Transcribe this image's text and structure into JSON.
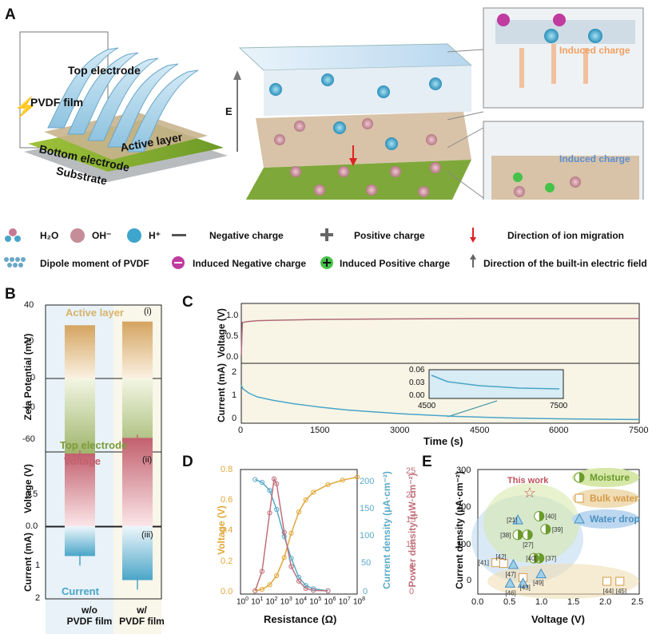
{
  "panels": {
    "a": "A",
    "b": "B",
    "c": "C",
    "d": "D",
    "e": "E"
  },
  "panelA": {
    "device_labels": [
      "Top electrode",
      "PVDF film",
      "Active layer",
      "Bottom electrode",
      "Substrate"
    ],
    "field_label": "E",
    "ions": {
      "oh": "OH⁻",
      "h": "H⁺"
    },
    "callouts": [
      "Induced charge",
      "Induced charge"
    ],
    "colors": {
      "top": "#9fd0ea",
      "green": "#8fb640",
      "particle": "#d8c3a8",
      "oh": "#c48a95",
      "h": "#3ea5cc",
      "induced_neg": "#c03aa0",
      "induced_pos": "#46c24a"
    }
  },
  "legend": {
    "row1": [
      "H₂O",
      "OH⁻",
      "H⁺",
      "Negative charge",
      "Positive charge",
      "Direction of ion migration"
    ],
    "row2": [
      "Dipole moment of PVDF",
      "Induced Negative charge",
      "Induced Positive charge",
      "Direction of the built-in electric field"
    ]
  },
  "panelB": {
    "subpanels": [
      "(i)",
      "(ii)",
      "(iii)"
    ],
    "zeta_ylabel": "Zeta Potential (mV)",
    "zeta_ticks": [
      "40",
      "20",
      "0",
      "-30",
      "-60"
    ],
    "zeta_top_label": "Active layer",
    "zeta_bottom_label": "Top electrode",
    "voltage_ylabel": "Voltage (V)",
    "voltage_ticks": [
      "0.5",
      "0.0"
    ],
    "voltage_label": "Voltage",
    "current_ylabel": "Current (mA)",
    "current_ticks": [
      "1",
      "2"
    ],
    "current_label": "Current",
    "xcats": [
      [
        "w/o",
        "PVDF film"
      ],
      [
        "w/",
        "PVDF film"
      ]
    ]
  },
  "panelC": {
    "voltage_ylabel": "Voltage (V)",
    "current_ylabel": "Current (mA)",
    "v_ticks": [
      "1.0",
      "0.5",
      "0.0"
    ],
    "i_ticks": [
      "2",
      "1",
      "0"
    ],
    "x_ticks": [
      "0",
      "1500",
      "3000",
      "4500",
      "6000",
      "7500"
    ],
    "xlabel": "Time (s)",
    "inset_y": [
      "0.06",
      "0.03",
      "0.00"
    ],
    "inset_x": [
      "4500",
      "7500"
    ]
  },
  "panelD": {
    "ylabel_left": "Voltage (V)",
    "ylabel_right1": "Current density (μA·cm⁻²)",
    "ylabel_right2": "Power density (μW·cm⁻²)",
    "xlabel": "Resistance (Ω)",
    "left_ticks": [
      "0.8",
      "0.6",
      "0.4",
      "0.2",
      "0.0"
    ],
    "cd_ticks": [
      "200",
      "150",
      "100",
      "50",
      "0"
    ],
    "pd_ticks": [
      "25",
      "20",
      "15",
      "10",
      "5",
      "0"
    ],
    "x_exps": [
      "0",
      "1",
      "2",
      "3",
      "4",
      "5",
      "6",
      "7",
      "8"
    ]
  },
  "panelE": {
    "ylabel": "Current density (μA·cm⁻²)",
    "xlabel": "Voltage (V)",
    "y_ticks": [
      "300",
      "200",
      "100",
      "0"
    ],
    "x_ticks": [
      "0.0",
      "0.5",
      "1.0",
      "1.5",
      "2.0",
      "2.5"
    ],
    "legend": [
      "Moisture",
      "Bulk water",
      "Water drop"
    ],
    "this_work": "This work",
    "refs": [
      "[21]",
      "[40]",
      "[38]",
      "[39]",
      "[27]",
      "[41]",
      "[42]",
      "[40]",
      "[37]",
      "[46]",
      "[47]",
      "[43]",
      "[49]",
      "[44]",
      "[45]"
    ]
  },
  "chart_data": [
    {
      "type": "bar",
      "categories": [
        "w/o PVDF film",
        "w/ PVDF film"
      ],
      "series": [
        {
          "name": "Active layer",
          "values": [
            29,
            31
          ]
        },
        {
          "name": "Top electrode",
          "values": [
            -58,
            -59
          ]
        }
      ],
      "ylabel": "Zeta Potential (mV)",
      "ylim": [
        -60,
        40
      ]
    },
    {
      "type": "bar",
      "categories": [
        "w/o PVDF film",
        "w/ PVDF film"
      ],
      "series": [
        {
          "name": "Voltage",
          "values": [
            0.65,
            0.79
          ]
        },
        {
          "name": "Current",
          "values": [
            0.83,
            1.5
          ]
        }
      ],
      "ylabel": "Voltage (V) / Current (mA)"
    },
    {
      "type": "line",
      "xlabel": "Time (s)",
      "xlim": [
        0,
        7500
      ],
      "series": [
        {
          "name": "Voltage",
          "x": [
            0,
            20,
            100,
            300,
            600,
            1500,
            3000,
            4500,
            6000,
            7500
          ],
          "y": [
            0.0,
            0.72,
            0.74,
            0.76,
            0.77,
            0.79,
            0.8,
            0.81,
            0.81,
            0.81
          ]
        },
        {
          "name": "Current",
          "x": [
            0,
            30,
            150,
            300,
            600,
            1000,
            1500,
            2000,
            3000,
            4000,
            5000,
            6000,
            7500
          ],
          "y": [
            1.5,
            1.35,
            1.15,
            1.0,
            0.85,
            0.7,
            0.55,
            0.43,
            0.27,
            0.16,
            0.09,
            0.05,
            0.02
          ]
        }
      ]
    },
    {
      "type": "line",
      "xlabel": "Resistance (Ω)",
      "x_scale": "log",
      "xlim": [
        1,
        100000000
      ],
      "series": [
        {
          "name": "Voltage",
          "x": [
            10,
            30,
            100,
            300,
            1000,
            3000,
            10000,
            30000,
            100000,
            1000000,
            10000000,
            100000000
          ],
          "y": [
            0.0,
            0.01,
            0.04,
            0.1,
            0.22,
            0.38,
            0.52,
            0.6,
            0.65,
            0.7,
            0.73,
            0.75
          ]
        },
        {
          "name": "Current density",
          "x": [
            10,
            30,
            100,
            300,
            1000,
            3000,
            10000,
            30000,
            100000,
            1000000
          ],
          "y": [
            205,
            200,
            185,
            150,
            100,
            60,
            25,
            10,
            4,
            0
          ]
        },
        {
          "name": "Power density",
          "x": [
            10,
            30,
            100,
            200,
            300,
            1000,
            3000,
            10000,
            30000,
            100000,
            1000000
          ],
          "y": [
            0,
            4,
            16,
            23,
            22,
            12,
            5,
            2,
            0.5,
            0.1,
            0
          ]
        }
      ]
    },
    {
      "type": "scatter",
      "xlabel": "Voltage (V)",
      "ylabel": "Current density (μA·cm⁻²)",
      "xlim": [
        0,
        2.5
      ],
      "ylim": [
        -50,
        300
      ],
      "series": [
        {
          "name": "This work",
          "points": [
            [
              0.79,
              238
            ]
          ]
        },
        {
          "name": "Moisture",
          "points": [
            [
              0.95,
              175
            ],
            [
              0.62,
              125
            ],
            [
              0.77,
              125
            ],
            [
              1.05,
              140
            ],
            [
              0.95,
              62
            ],
            [
              0.87,
              62
            ]
          ]
        },
        {
          "name": "Bulk water",
          "points": [
            [
              0.28,
              50
            ],
            [
              0.4,
              48
            ],
            [
              0.7,
              10
            ],
            [
              2.0,
              0
            ],
            [
              2.2,
              0
            ]
          ]
        },
        {
          "name": "Water drop",
          "points": [
            [
              0.62,
              165
            ],
            [
              0.5,
              -5
            ],
            [
              0.7,
              -5
            ],
            [
              0.55,
              45
            ],
            [
              0.98,
              20
            ]
          ]
        }
      ]
    }
  ]
}
